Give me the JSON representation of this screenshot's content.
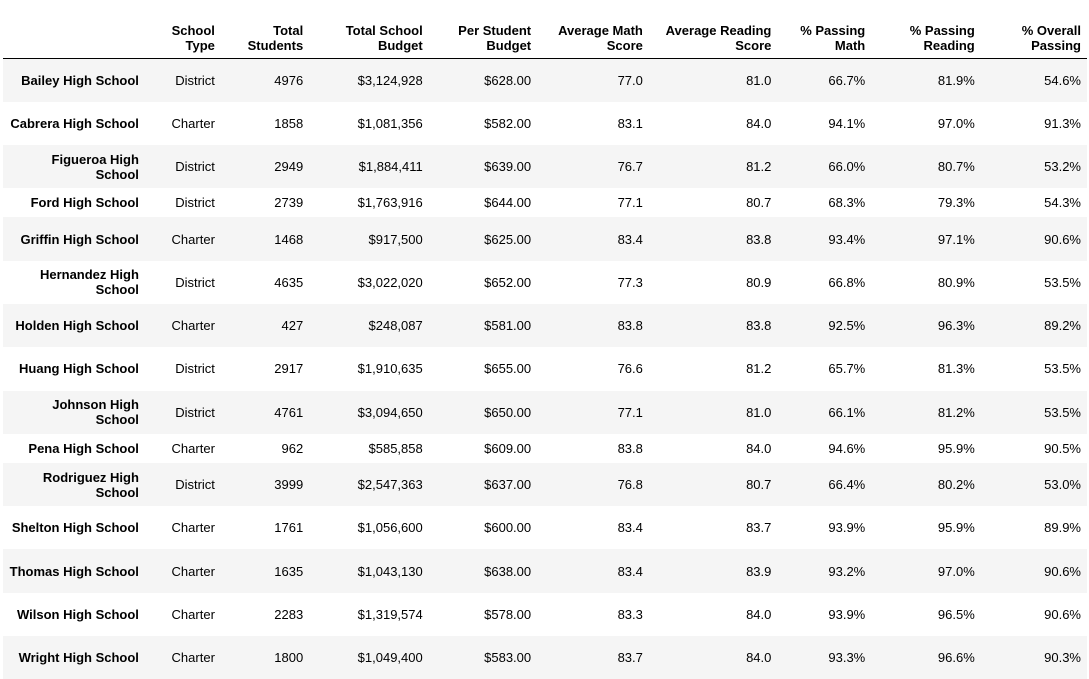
{
  "table": {
    "headers": [
      "",
      "School Type",
      "Total Students",
      "Total School Budget",
      "Per Student Budget",
      "Average Math Score",
      "Average Reading Score",
      "% Passing Math",
      "% Passing Reading",
      "% Overall Passing"
    ],
    "rows": [
      {
        "school": "Bailey High School",
        "type": "District",
        "students": "4976",
        "budget": "$3,124,928",
        "per_student": "$628.00",
        "avg_math": "77.0",
        "avg_reading": "81.0",
        "pass_math": "66.7%",
        "pass_reading": "81.9%",
        "overall": "54.6%"
      },
      {
        "school": "Cabrera High School",
        "type": "Charter",
        "students": "1858",
        "budget": "$1,081,356",
        "per_student": "$582.00",
        "avg_math": "83.1",
        "avg_reading": "84.0",
        "pass_math": "94.1%",
        "pass_reading": "97.0%",
        "overall": "91.3%"
      },
      {
        "school": "Figueroa High School",
        "type": "District",
        "students": "2949",
        "budget": "$1,884,411",
        "per_student": "$639.00",
        "avg_math": "76.7",
        "avg_reading": "81.2",
        "pass_math": "66.0%",
        "pass_reading": "80.7%",
        "overall": "53.2%"
      },
      {
        "school": "Ford High School",
        "type": "District",
        "students": "2739",
        "budget": "$1,763,916",
        "per_student": "$644.00",
        "avg_math": "77.1",
        "avg_reading": "80.7",
        "pass_math": "68.3%",
        "pass_reading": "79.3%",
        "overall": "54.3%"
      },
      {
        "school": "Griffin High School",
        "type": "Charter",
        "students": "1468",
        "budget": "$917,500",
        "per_student": "$625.00",
        "avg_math": "83.4",
        "avg_reading": "83.8",
        "pass_math": "93.4%",
        "pass_reading": "97.1%",
        "overall": "90.6%"
      },
      {
        "school": "Hernandez High School",
        "type": "District",
        "students": "4635",
        "budget": "$3,022,020",
        "per_student": "$652.00",
        "avg_math": "77.3",
        "avg_reading": "80.9",
        "pass_math": "66.8%",
        "pass_reading": "80.9%",
        "overall": "53.5%"
      },
      {
        "school": "Holden High School",
        "type": "Charter",
        "students": "427",
        "budget": "$248,087",
        "per_student": "$581.00",
        "avg_math": "83.8",
        "avg_reading": "83.8",
        "pass_math": "92.5%",
        "pass_reading": "96.3%",
        "overall": "89.2%"
      },
      {
        "school": "Huang High School",
        "type": "District",
        "students": "2917",
        "budget": "$1,910,635",
        "per_student": "$655.00",
        "avg_math": "76.6",
        "avg_reading": "81.2",
        "pass_math": "65.7%",
        "pass_reading": "81.3%",
        "overall": "53.5%"
      },
      {
        "school": "Johnson High School",
        "type": "District",
        "students": "4761",
        "budget": "$3,094,650",
        "per_student": "$650.00",
        "avg_math": "77.1",
        "avg_reading": "81.0",
        "pass_math": "66.1%",
        "pass_reading": "81.2%",
        "overall": "53.5%"
      },
      {
        "school": "Pena High School",
        "type": "Charter",
        "students": "962",
        "budget": "$585,858",
        "per_student": "$609.00",
        "avg_math": "83.8",
        "avg_reading": "84.0",
        "pass_math": "94.6%",
        "pass_reading": "95.9%",
        "overall": "90.5%"
      },
      {
        "school": "Rodriguez High School",
        "type": "District",
        "students": "3999",
        "budget": "$2,547,363",
        "per_student": "$637.00",
        "avg_math": "76.8",
        "avg_reading": "80.7",
        "pass_math": "66.4%",
        "pass_reading": "80.2%",
        "overall": "53.0%"
      },
      {
        "school": "Shelton High School",
        "type": "Charter",
        "students": "1761",
        "budget": "$1,056,600",
        "per_student": "$600.00",
        "avg_math": "83.4",
        "avg_reading": "83.7",
        "pass_math": "93.9%",
        "pass_reading": "95.9%",
        "overall": "89.9%"
      },
      {
        "school": "Thomas High School",
        "type": "Charter",
        "students": "1635",
        "budget": "$1,043,130",
        "per_student": "$638.00",
        "avg_math": "83.4",
        "avg_reading": "83.9",
        "pass_math": "93.2%",
        "pass_reading": "97.0%",
        "overall": "90.6%"
      },
      {
        "school": "Wilson High School",
        "type": "Charter",
        "students": "2283",
        "budget": "$1,319,574",
        "per_student": "$578.00",
        "avg_math": "83.3",
        "avg_reading": "84.0",
        "pass_math": "93.9%",
        "pass_reading": "96.5%",
        "overall": "90.6%"
      },
      {
        "school": "Wright High School",
        "type": "Charter",
        "students": "1800",
        "budget": "$1,049,400",
        "per_student": "$583.00",
        "avg_math": "83.7",
        "avg_reading": "84.0",
        "pass_math": "93.3%",
        "pass_reading": "96.6%",
        "overall": "90.3%"
      }
    ]
  },
  "colors": {
    "row_stripe": "#f5f5f5",
    "row_plain": "#ffffff",
    "header_rule": "#000000"
  }
}
